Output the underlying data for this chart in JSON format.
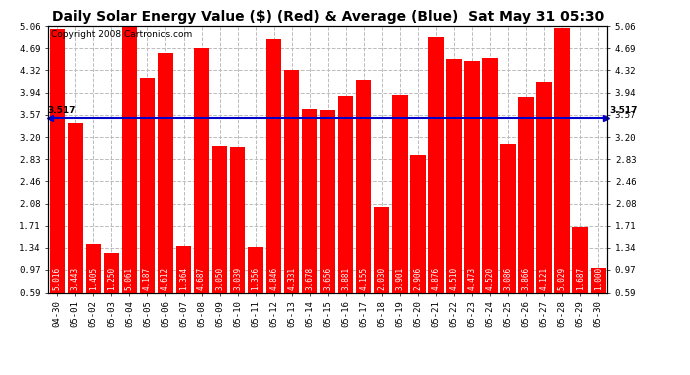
{
  "title": "Daily Solar Energy Value ($) (Red) & Average (Blue)  Sat May 31 05:30",
  "copyright": "Copyright 2008 Cartronics.com",
  "average": 3.517,
  "categories": [
    "04-30",
    "05-01",
    "05-02",
    "05-03",
    "05-04",
    "05-05",
    "05-06",
    "05-07",
    "05-08",
    "05-09",
    "05-10",
    "05-11",
    "05-12",
    "05-13",
    "05-14",
    "05-15",
    "05-16",
    "05-17",
    "05-18",
    "05-19",
    "05-20",
    "05-21",
    "05-22",
    "05-23",
    "05-24",
    "05-25",
    "05-26",
    "05-27",
    "05-28",
    "05-29",
    "05-30"
  ],
  "values": [
    5.016,
    3.443,
    1.405,
    1.25,
    5.061,
    4.187,
    4.612,
    1.364,
    4.687,
    3.05,
    3.039,
    1.356,
    4.846,
    4.331,
    3.678,
    3.656,
    3.881,
    4.155,
    2.03,
    3.901,
    2.906,
    4.876,
    4.51,
    4.473,
    4.52,
    3.086,
    3.866,
    4.121,
    5.029,
    1.687,
    1.0
  ],
  "bar_color": "#ff0000",
  "average_line_color": "#0000cc",
  "background_color": "#ffffff",
  "plot_bg_color": "#ffffff",
  "grid_color": "#bbbbbb",
  "ylim_min": 0.59,
  "ylim_max": 5.06,
  "yticks": [
    0.59,
    0.97,
    1.34,
    1.71,
    2.08,
    2.46,
    2.83,
    3.2,
    3.57,
    3.94,
    4.32,
    4.69,
    5.06
  ],
  "title_fontsize": 10,
  "copyright_fontsize": 6.5,
  "tick_fontsize": 6.5,
  "bar_label_fontsize": 5.5,
  "avg_label_fontsize": 6.5
}
